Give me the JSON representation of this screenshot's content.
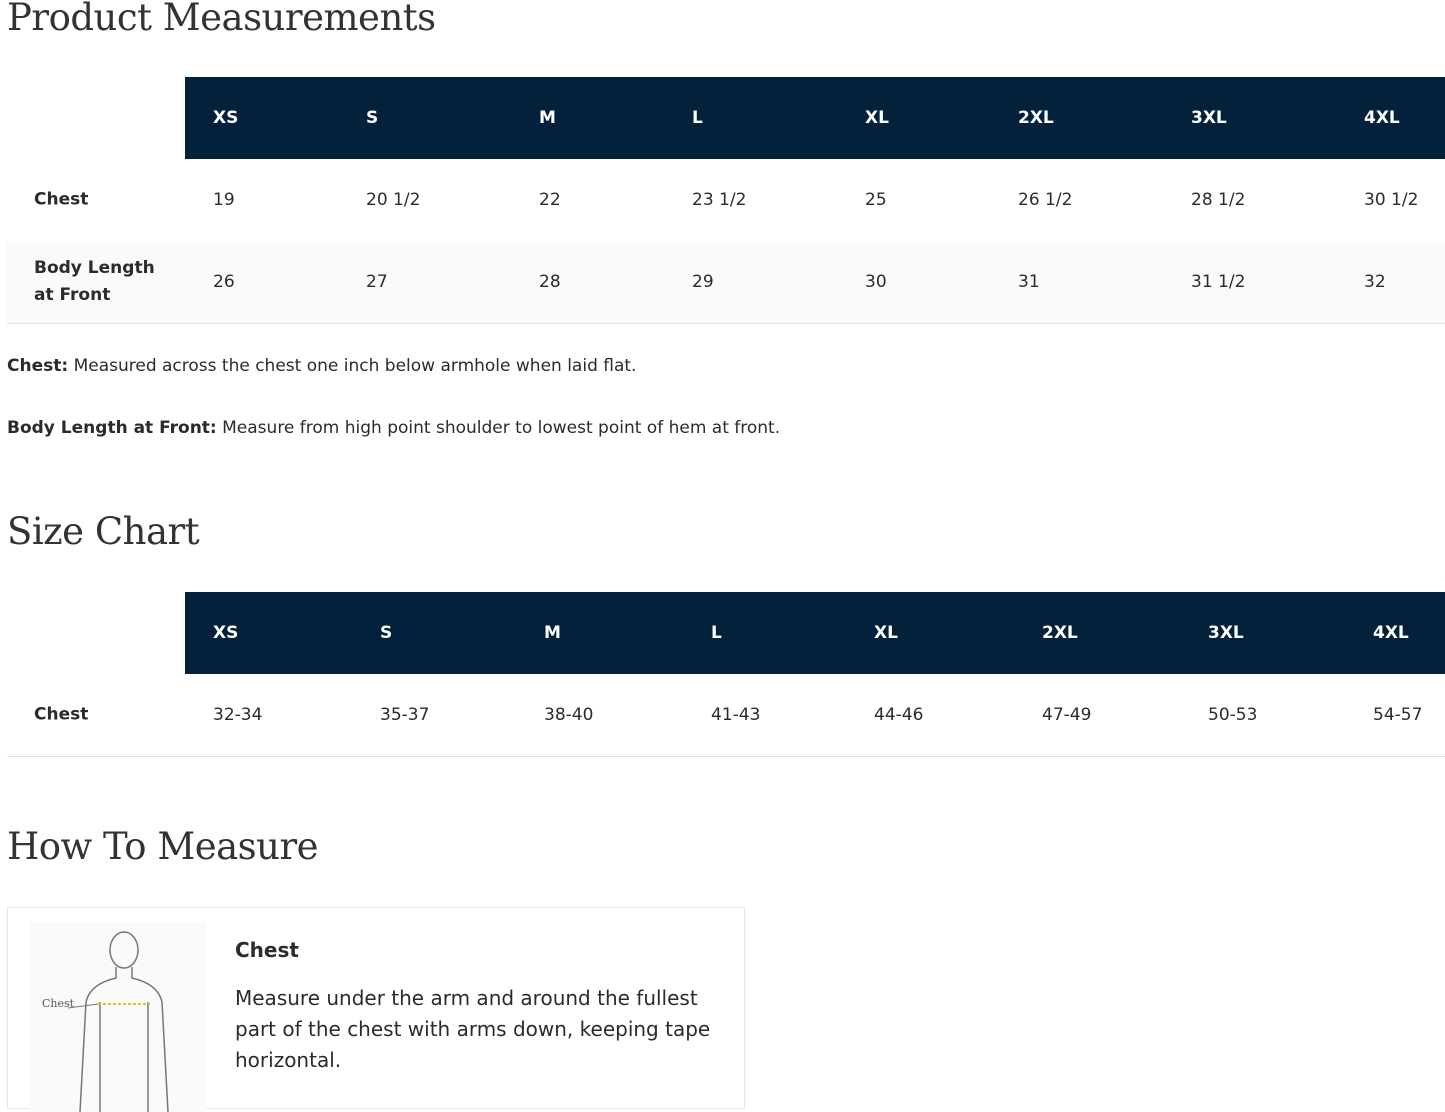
{
  "sections": [
    {
      "title": "Product Measurements",
      "table": {
        "header": [
          "XS",
          "S",
          "M",
          "L",
          "XL",
          "2XL",
          "3XL",
          "4XL"
        ],
        "rows": [
          {
            "label": "Chest",
            "cells": [
              "19",
              "20 1/2",
              "22",
              "23 1/2",
              "25",
              "26 1/2",
              "28 1/2",
              "30 1/2"
            ]
          },
          {
            "label": "Body Length at Front",
            "cells": [
              "26",
              "27",
              "28",
              "29",
              "30",
              "31",
              "31 1/2",
              "32"
            ]
          }
        ]
      },
      "notes": [
        {
          "term": "Chest:",
          "text": "Measured across the chest one inch below armhole when laid flat."
        },
        {
          "term": "Body Length at Front:",
          "text": "Measure from high point shoulder to lowest point of hem at front."
        }
      ]
    },
    {
      "title": "Size Chart",
      "table": {
        "header": [
          "XS",
          "S",
          "M",
          "L",
          "XL",
          "2XL",
          "3XL",
          "4XL"
        ],
        "rows": [
          {
            "label": "Chest",
            "cells": [
              "32-34",
              "35-37",
              "38-40",
              "41-43",
              "44-46",
              "47-49",
              "50-53",
              "54-57"
            ]
          }
        ]
      }
    },
    {
      "title": "How To Measure",
      "card": {
        "figure_label": "Chest",
        "heading": "Chest",
        "text": "Measure under the arm and around the fullest part of the chest with arms down, keeping tape horizontal."
      }
    }
  ]
}
